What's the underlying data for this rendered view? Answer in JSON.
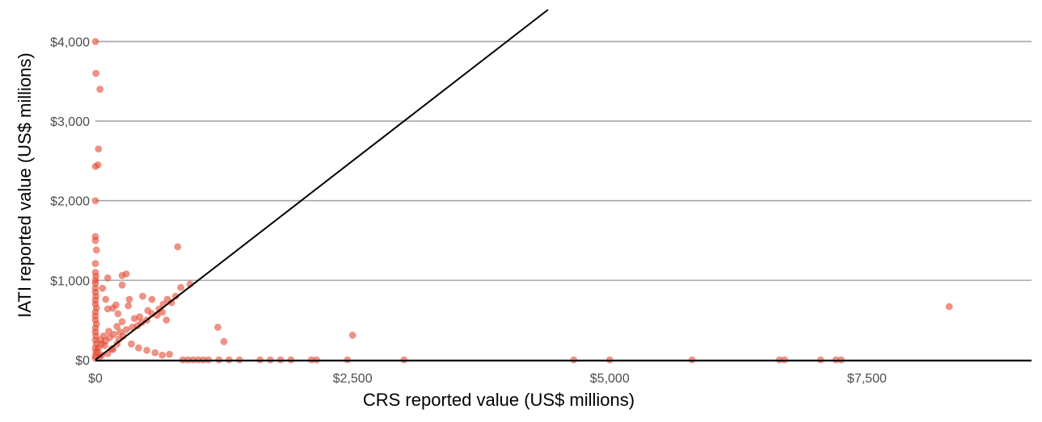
{
  "chart_data": {
    "type": "scatter",
    "title": "",
    "xlabel": "CRS reported value (US$ millions)",
    "ylabel": "IATI reported value (US$ millions)",
    "xlim": [
      0,
      9100
    ],
    "ylim": [
      -10,
      4400
    ],
    "x_ticks": [
      0,
      2500,
      5000,
      7500
    ],
    "x_tick_labels": [
      "$0",
      "$2,500",
      "$5,000",
      "$7,500"
    ],
    "y_ticks": [
      0,
      1000,
      2000,
      3000,
      4000
    ],
    "y_tick_labels": [
      "$0",
      "$1,000",
      "$2,000",
      "$3,000",
      "$4,000"
    ],
    "grid": "horizontal major gridlines",
    "legend": "none",
    "reference_line": {
      "type": "identity",
      "label": "y = x"
    },
    "colors": {
      "points": "#e34a33",
      "grid": "#a6a6a6",
      "line": "#000000"
    },
    "series": [
      {
        "points": [
          [
            0,
            4000
          ],
          [
            5,
            3600
          ],
          [
            45,
            3400
          ],
          [
            30,
            2650
          ],
          [
            25,
            2450
          ],
          [
            0,
            2430
          ],
          [
            0,
            2000
          ],
          [
            0,
            1550
          ],
          [
            0,
            1500
          ],
          [
            10,
            1380
          ],
          [
            0,
            1210
          ],
          [
            0,
            1100
          ],
          [
            5,
            1050
          ],
          [
            0,
            1000
          ],
          [
            0,
            960
          ],
          [
            0,
            900
          ],
          [
            0,
            850
          ],
          [
            5,
            800
          ],
          [
            0,
            750
          ],
          [
            0,
            700
          ],
          [
            10,
            650
          ],
          [
            0,
            600
          ],
          [
            0,
            550
          ],
          [
            0,
            500
          ],
          [
            10,
            450
          ],
          [
            0,
            400
          ],
          [
            0,
            350
          ],
          [
            5,
            300
          ],
          [
            0,
            250
          ],
          [
            10,
            200
          ],
          [
            0,
            150
          ],
          [
            5,
            100
          ],
          [
            0,
            50
          ],
          [
            0,
            20
          ],
          [
            800,
            1420
          ],
          [
            300,
            1080
          ],
          [
            260,
            1060
          ],
          [
            120,
            1030
          ],
          [
            260,
            940
          ],
          [
            920,
            950
          ],
          [
            830,
            910
          ],
          [
            70,
            900
          ],
          [
            460,
            800
          ],
          [
            780,
            800
          ],
          [
            330,
            760
          ],
          [
            100,
            760
          ],
          [
            550,
            760
          ],
          [
            700,
            760
          ],
          [
            740,
            720
          ],
          [
            660,
            700
          ],
          [
            200,
            690
          ],
          [
            320,
            680
          ],
          [
            120,
            640
          ],
          [
            620,
            640
          ],
          [
            170,
            650
          ],
          [
            650,
            600
          ],
          [
            510,
            620
          ],
          [
            550,
            580
          ],
          [
            220,
            580
          ],
          [
            600,
            560
          ],
          [
            430,
            540
          ],
          [
            380,
            520
          ],
          [
            500,
            500
          ],
          [
            690,
            500
          ],
          [
            260,
            480
          ],
          [
            450,
            470
          ],
          [
            410,
            430
          ],
          [
            360,
            410
          ],
          [
            300,
            380
          ],
          [
            240,
            350
          ],
          [
            180,
            320
          ],
          [
            140,
            280
          ],
          [
            100,
            240
          ],
          [
            60,
            200
          ],
          [
            30,
            150
          ],
          [
            20,
            100
          ],
          [
            210,
            420
          ],
          [
            130,
            360
          ],
          [
            80,
            300
          ],
          [
            50,
            250
          ],
          [
            90,
            180
          ],
          [
            160,
            140
          ],
          [
            230,
            260
          ],
          [
            270,
            300
          ],
          [
            350,
            200
          ],
          [
            420,
            150
          ],
          [
            500,
            120
          ],
          [
            580,
            90
          ],
          [
            650,
            60
          ],
          [
            720,
            70
          ],
          [
            210,
            200
          ],
          [
            170,
            130
          ],
          [
            120,
            80
          ],
          [
            60,
            60
          ],
          [
            40,
            30
          ],
          [
            1190,
            410
          ],
          [
            1250,
            230
          ],
          [
            2500,
            310
          ],
          [
            8300,
            670
          ],
          [
            850,
            0
          ],
          [
            900,
            0
          ],
          [
            950,
            0
          ],
          [
            1000,
            0
          ],
          [
            1050,
            0
          ],
          [
            1100,
            0
          ],
          [
            1200,
            0
          ],
          [
            1300,
            0
          ],
          [
            1400,
            0
          ],
          [
            1600,
            0
          ],
          [
            1700,
            0
          ],
          [
            1800,
            0
          ],
          [
            1900,
            0
          ],
          [
            2100,
            0
          ],
          [
            2150,
            0
          ],
          [
            2450,
            0
          ],
          [
            3000,
            0
          ],
          [
            4650,
            0
          ],
          [
            5000,
            0
          ],
          [
            5800,
            0
          ],
          [
            6650,
            0
          ],
          [
            6700,
            0
          ],
          [
            7050,
            0
          ],
          [
            7200,
            0
          ],
          [
            7250,
            0
          ]
        ]
      }
    ]
  }
}
